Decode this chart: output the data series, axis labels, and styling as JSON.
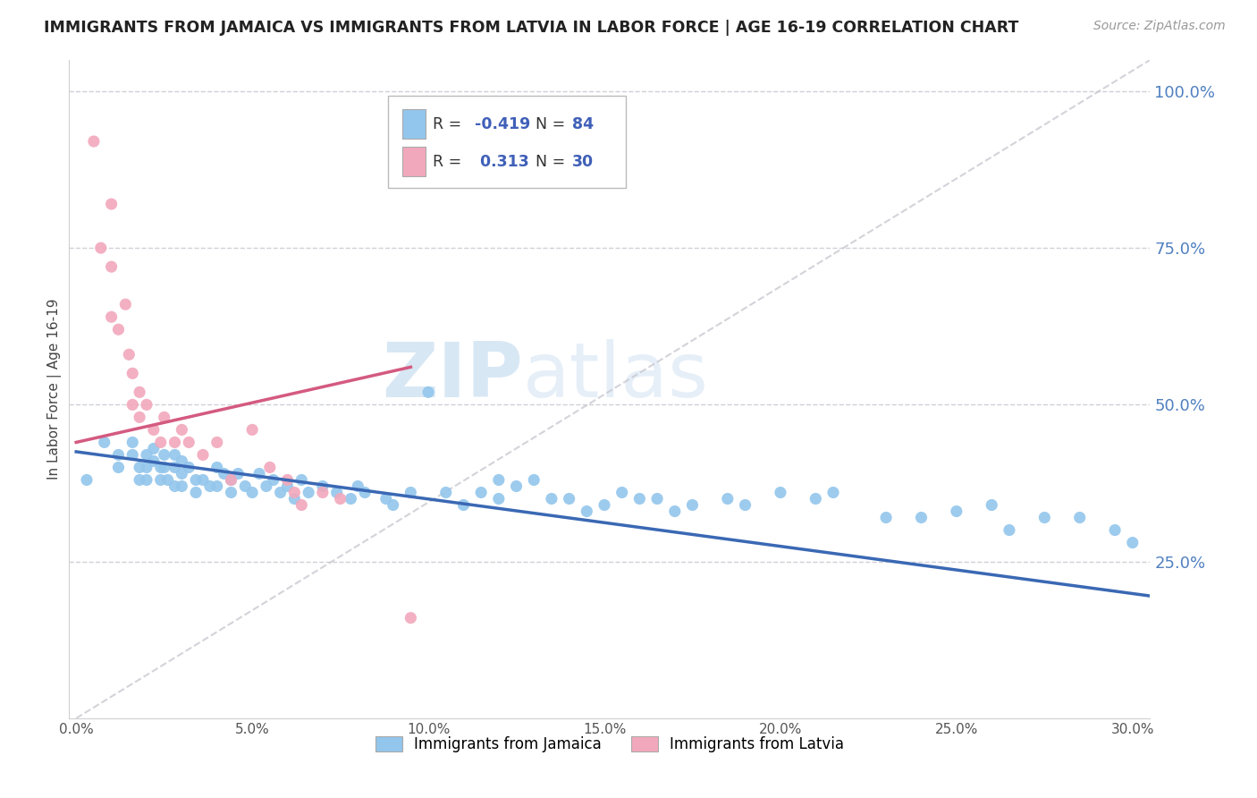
{
  "title": "IMMIGRANTS FROM JAMAICA VS IMMIGRANTS FROM LATVIA IN LABOR FORCE | AGE 16-19 CORRELATION CHART",
  "source": "Source: ZipAtlas.com",
  "ylabel": "In Labor Force | Age 16-19",
  "y_ticks": [
    0.25,
    0.5,
    0.75,
    1.0
  ],
  "y_tick_labels": [
    "25.0%",
    "50.0%",
    "75.0%",
    "100.0%"
  ],
  "x_ticks": [
    0.0,
    0.05,
    0.1,
    0.15,
    0.2,
    0.25,
    0.3
  ],
  "x_tick_labels": [
    "0.0%",
    "5.0%",
    "10.0%",
    "15.0%",
    "20.0%",
    "25.0%",
    "30.0%"
  ],
  "xlim": [
    -0.002,
    0.305
  ],
  "ylim": [
    0.0,
    1.05
  ],
  "legend_R1": "-0.419",
  "legend_N1": "84",
  "legend_R2": "0.313",
  "legend_N2": "30",
  "color_jamaica": "#93C6EC",
  "color_latvia": "#F2A8BC",
  "trendline_jamaica": "#3A68B4",
  "trendline_latvia": "#D45A80",
  "trendline_diagonal_color": "#C8C8D0",
  "watermark_zip": "ZIP",
  "watermark_atlas": "atlas",
  "jamaica_x": [
    0.003,
    0.008,
    0.012,
    0.012,
    0.016,
    0.016,
    0.018,
    0.018,
    0.02,
    0.02,
    0.02,
    0.022,
    0.022,
    0.024,
    0.024,
    0.025,
    0.025,
    0.026,
    0.028,
    0.028,
    0.028,
    0.03,
    0.03,
    0.03,
    0.032,
    0.034,
    0.034,
    0.036,
    0.038,
    0.04,
    0.04,
    0.042,
    0.044,
    0.044,
    0.046,
    0.048,
    0.05,
    0.052,
    0.054,
    0.056,
    0.058,
    0.06,
    0.062,
    0.064,
    0.066,
    0.07,
    0.074,
    0.078,
    0.08,
    0.082,
    0.088,
    0.09,
    0.095,
    0.1,
    0.105,
    0.11,
    0.115,
    0.12,
    0.12,
    0.125,
    0.13,
    0.135,
    0.14,
    0.145,
    0.15,
    0.155,
    0.16,
    0.165,
    0.17,
    0.175,
    0.185,
    0.19,
    0.2,
    0.21,
    0.215,
    0.23,
    0.24,
    0.25,
    0.26,
    0.265,
    0.275,
    0.285,
    0.295,
    0.3
  ],
  "jamaica_y": [
    0.38,
    0.44,
    0.42,
    0.4,
    0.44,
    0.42,
    0.4,
    0.38,
    0.42,
    0.4,
    0.38,
    0.43,
    0.41,
    0.4,
    0.38,
    0.42,
    0.4,
    0.38,
    0.42,
    0.4,
    0.37,
    0.41,
    0.39,
    0.37,
    0.4,
    0.38,
    0.36,
    0.38,
    0.37,
    0.4,
    0.37,
    0.39,
    0.38,
    0.36,
    0.39,
    0.37,
    0.36,
    0.39,
    0.37,
    0.38,
    0.36,
    0.37,
    0.35,
    0.38,
    0.36,
    0.37,
    0.36,
    0.35,
    0.37,
    0.36,
    0.35,
    0.34,
    0.36,
    0.52,
    0.36,
    0.34,
    0.36,
    0.35,
    0.38,
    0.37,
    0.38,
    0.35,
    0.35,
    0.33,
    0.34,
    0.36,
    0.35,
    0.35,
    0.33,
    0.34,
    0.35,
    0.34,
    0.36,
    0.35,
    0.36,
    0.32,
    0.32,
    0.33,
    0.34,
    0.3,
    0.32,
    0.32,
    0.3,
    0.28
  ],
  "latvia_x": [
    0.005,
    0.007,
    0.01,
    0.01,
    0.01,
    0.012,
    0.014,
    0.015,
    0.016,
    0.016,
    0.018,
    0.018,
    0.02,
    0.022,
    0.024,
    0.025,
    0.028,
    0.03,
    0.032,
    0.036,
    0.04,
    0.044,
    0.05,
    0.055,
    0.06,
    0.062,
    0.064,
    0.07,
    0.075,
    0.095
  ],
  "latvia_y": [
    0.92,
    0.75,
    0.82,
    0.72,
    0.64,
    0.62,
    0.66,
    0.58,
    0.55,
    0.5,
    0.52,
    0.48,
    0.5,
    0.46,
    0.44,
    0.48,
    0.44,
    0.46,
    0.44,
    0.42,
    0.44,
    0.38,
    0.46,
    0.4,
    0.38,
    0.36,
    0.34,
    0.36,
    0.35,
    0.16
  ],
  "trendline_j_x0": 0.0,
  "trendline_j_x1": 0.305,
  "trendline_j_y0": 0.425,
  "trendline_j_y1": 0.195,
  "trendline_l_x0": 0.0,
  "trendline_l_x1": 0.095,
  "trendline_l_y0": 0.44,
  "trendline_l_y1": 0.56,
  "grid_color": "#D0D0D8",
  "spine_color": "#D0D0D0"
}
